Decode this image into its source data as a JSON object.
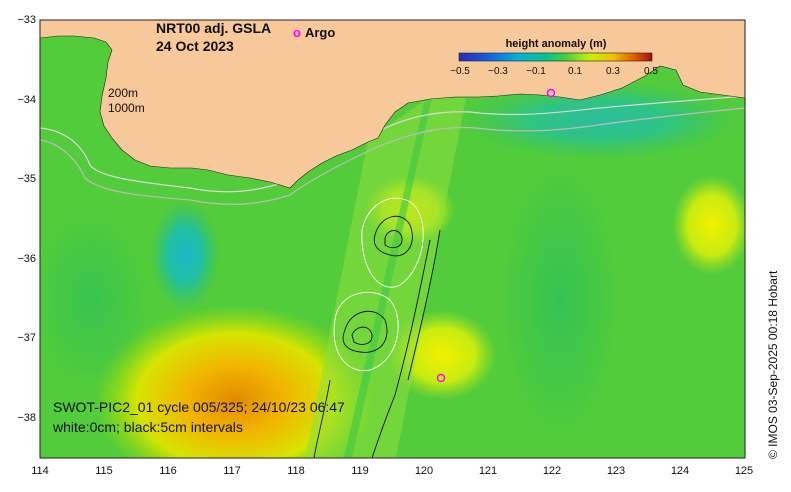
{
  "map": {
    "title_line1": "NRT00 adj. GSLA",
    "title_line2": "24 Oct 2023",
    "legend_argo_marker": "o",
    "legend_argo_label": "Argo",
    "argo_color": "#ff00ff",
    "contour_labels": {
      "shallow": "200m",
      "deep": "1000m"
    },
    "colorbar": {
      "title": "height anomaly (m)",
      "labels": [
        "−0.5",
        "−0.3",
        "−0.1",
        "0.1",
        "0.3",
        "0.5"
      ],
      "colors": [
        "#2b2bbf",
        "#00a0e0",
        "#00c8a0",
        "#30c850",
        "#c8f000",
        "#f0c000",
        "#e06000",
        "#a01010"
      ]
    },
    "swot_line1": "SWOT-PIC2_01 cycle 005/325; 24/10/23 06:47",
    "swot_line2": "white:0cm; black:5cm intervals",
    "credit": "© IMOS 03-Sep-2025 00:18 Hobart",
    "land_color": "#f7c89a",
    "axes": {
      "y_labels": [
        "−33",
        "−34",
        "−35",
        "−36",
        "−37",
        "−38"
      ],
      "x_labels": [
        "114",
        "115",
        "116",
        "117",
        "118",
        "119",
        "120",
        "121",
        "122",
        "123",
        "124",
        "125"
      ],
      "lon_range": [
        114,
        125
      ],
      "lat_range": [
        -38.5,
        -33
      ]
    }
  }
}
